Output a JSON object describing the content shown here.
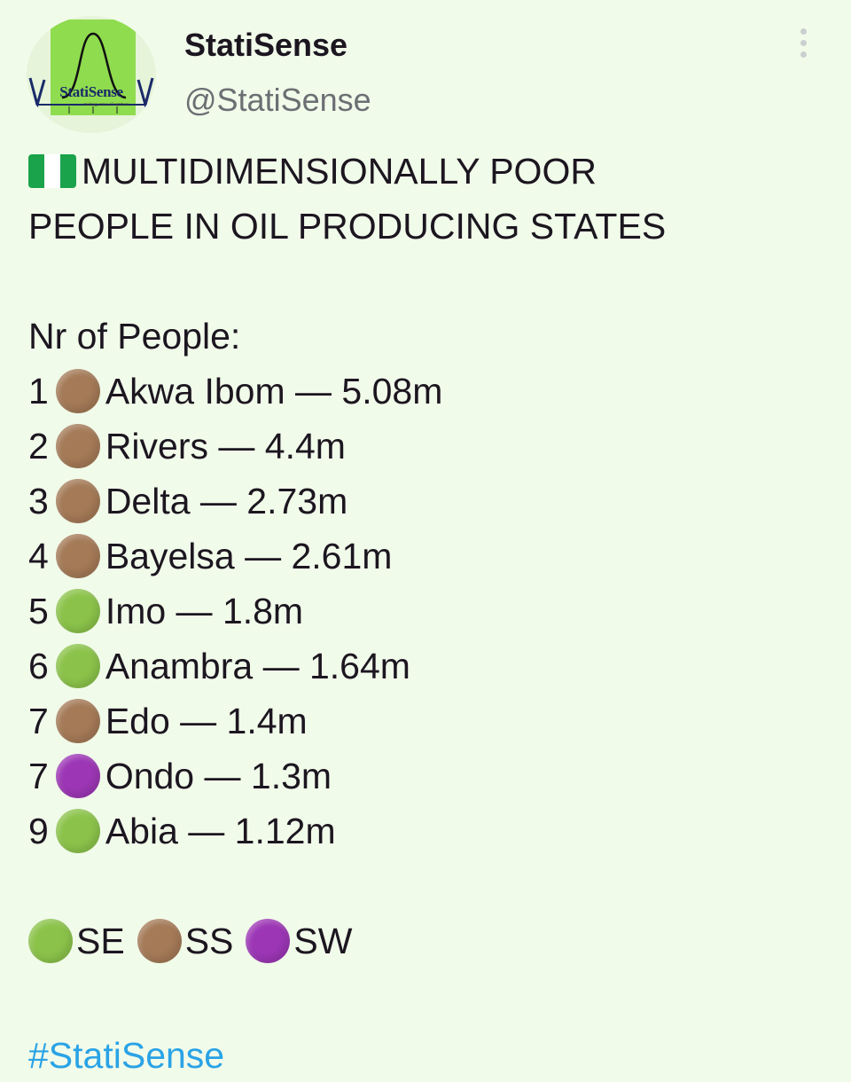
{
  "account": {
    "display_name": "StatiSense",
    "handle": "@StatiSense",
    "avatar_text": "StatiSense",
    "avatar_tagline": "making sense of numbers"
  },
  "post": {
    "title_line1": "MULTIDIMENSIONALLY POOR",
    "title_line2": "PEOPLE IN OIL PRODUCING STATES",
    "subtitle": "Nr of People:",
    "items": [
      {
        "rank": "1",
        "region": "SS",
        "text": "Akwa Ibom — 5.08m"
      },
      {
        "rank": "2",
        "region": "SS",
        "text": "Rivers — 4.4m"
      },
      {
        "rank": "3",
        "region": "SS",
        "text": "Delta — 2.73m"
      },
      {
        "rank": "4",
        "region": "SS",
        "text": "Bayelsa — 2.61m"
      },
      {
        "rank": "5",
        "region": "SE",
        "text": "Imo — 1.8m"
      },
      {
        "rank": "6",
        "region": "SE",
        "text": "Anambra — 1.64m"
      },
      {
        "rank": "7",
        "region": "SS",
        "text": "Edo — 1.4m"
      },
      {
        "rank": "7",
        "region": "SW",
        "text": "Ondo — 1.3m"
      },
      {
        "rank": "9",
        "region": "SE",
        "text": "Abia — 1.12m"
      }
    ],
    "legend": [
      {
        "region": "SE",
        "label": "SE"
      },
      {
        "region": "SS",
        "label": "SS"
      },
      {
        "region": "SW",
        "label": "SW"
      }
    ],
    "hashtag": "#StatiSense"
  },
  "colors": {
    "SE": "#8bc34a",
    "SS": "#a47a57",
    "SW": "#9c36b5",
    "background": "#f1fbea",
    "hashtag": "#2aa3e6",
    "flag_green": "#1aa34a"
  }
}
